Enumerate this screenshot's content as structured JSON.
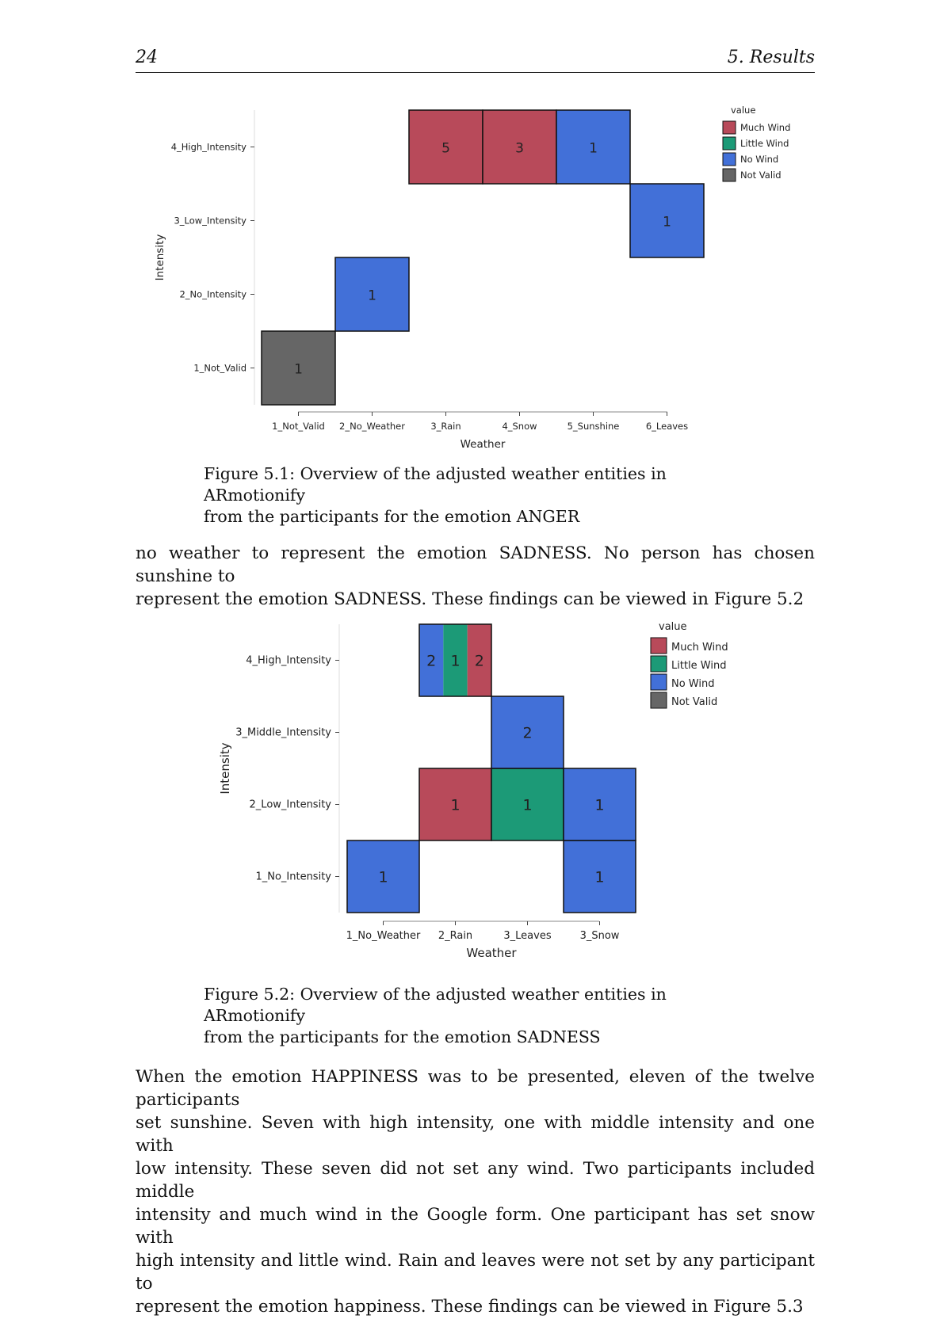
{
  "header": {
    "page_number": "24",
    "chapter": "5. Results"
  },
  "figures": [
    {
      "caption_lines": [
        "Figure 5.1: Overview of the adjusted weather entities in ARmotionify",
        "from the participants for the emotion ANGER"
      ]
    },
    {
      "caption_lines": [
        "Figure 5.2: Overview of the adjusted weather entities in ARmotionify",
        "from the participants for the emotion SADNESS"
      ]
    }
  ],
  "paragraphs": [
    [
      "no weather to represent the emotion SADNESS. No person has chosen sunshine to",
      "represent the emotion SADNESS. These findings can be viewed in Figure 5.2"
    ],
    [
      "When the emotion HAPPINESS was to be presented, eleven of the twelve participants",
      "set sunshine. Seven with high intensity, one with middle intensity and one with",
      "low intensity. These seven did not set any wind. Two participants included middle",
      "intensity and much wind in the Google form. One participant has set snow with",
      "high intensity and little wind. Rain and leaves were not set by any participant to",
      "represent the emotion happiness. These findings can be viewed in Figure 5.3"
    ]
  ],
  "colors": {
    "Much Wind": "#b84a5a",
    "Little Wind": "#1c9a77",
    "No Wind": "#4270d8",
    "Not Valid": "#666666"
  },
  "chart_data": [
    {
      "type": "heatmap",
      "xlabel": "Weather",
      "ylabel": "Intensity",
      "categories_x": [
        "1_Not_Valid",
        "2_No_Weather",
        "3_Rain",
        "4_Snow",
        "5_Sunshine",
        "6_Leaves"
      ],
      "categories_y": [
        "1_Not_Valid",
        "2_No_Intensity",
        "3_Low_Intensity",
        "4_High_Intensity"
      ],
      "legend_title": "value",
      "legend": [
        "Much Wind",
        "Little Wind",
        "No Wind",
        "Not Valid"
      ],
      "legend_position": "top-right",
      "cells": [
        {
          "x": "1_Not_Valid",
          "y": "1_Not_Valid",
          "parts": [
            {
              "value": "Not Valid",
              "count": 1
            }
          ]
        },
        {
          "x": "2_No_Weather",
          "y": "2_No_Intensity",
          "parts": [
            {
              "value": "No Wind",
              "count": 1
            }
          ]
        },
        {
          "x": "3_Rain",
          "y": "4_High_Intensity",
          "parts": [
            {
              "value": "Much Wind",
              "count": 5
            }
          ]
        },
        {
          "x": "4_Snow",
          "y": "4_High_Intensity",
          "parts": [
            {
              "value": "Much Wind",
              "count": 3
            }
          ]
        },
        {
          "x": "5_Sunshine",
          "y": "4_High_Intensity",
          "parts": [
            {
              "value": "No Wind",
              "count": 1
            }
          ]
        },
        {
          "x": "6_Leaves",
          "y": "3_Low_Intensity",
          "parts": [
            {
              "value": "No Wind",
              "count": 1
            }
          ]
        }
      ]
    },
    {
      "type": "heatmap",
      "xlabel": "Weather",
      "ylabel": "Intensity",
      "categories_x": [
        "1_No_Weather",
        "2_Rain",
        "3_Leaves",
        "3_Snow"
      ],
      "categories_y": [
        "1_No_Intensity",
        "2_Low_Intensity",
        "3_Middle_Intensity",
        "4_High_Intensity"
      ],
      "legend_title": "value",
      "legend": [
        "Much Wind",
        "Little Wind",
        "No Wind",
        "Not Valid"
      ],
      "legend_position": "top-right",
      "cells": [
        {
          "x": "1_No_Weather",
          "y": "1_No_Intensity",
          "parts": [
            {
              "value": "No Wind",
              "count": 1
            }
          ]
        },
        {
          "x": "2_Rain",
          "y": "2_Low_Intensity",
          "parts": [
            {
              "value": "Much Wind",
              "count": 1
            }
          ]
        },
        {
          "x": "2_Rain",
          "y": "4_High_Intensity",
          "parts": [
            {
              "value": "No Wind",
              "count": 2
            },
            {
              "value": "Little Wind",
              "count": 1
            },
            {
              "value": "Much Wind",
              "count": 2
            }
          ]
        },
        {
          "x": "3_Leaves",
          "y": "2_Low_Intensity",
          "parts": [
            {
              "value": "Little Wind",
              "count": 1
            }
          ]
        },
        {
          "x": "3_Leaves",
          "y": "3_Middle_Intensity",
          "parts": [
            {
              "value": "No Wind",
              "count": 2
            }
          ]
        },
        {
          "x": "3_Snow",
          "y": "1_No_Intensity",
          "parts": [
            {
              "value": "No Wind",
              "count": 1
            }
          ]
        },
        {
          "x": "3_Snow",
          "y": "2_Low_Intensity",
          "parts": [
            {
              "value": "No Wind",
              "count": 1
            }
          ]
        }
      ]
    }
  ]
}
